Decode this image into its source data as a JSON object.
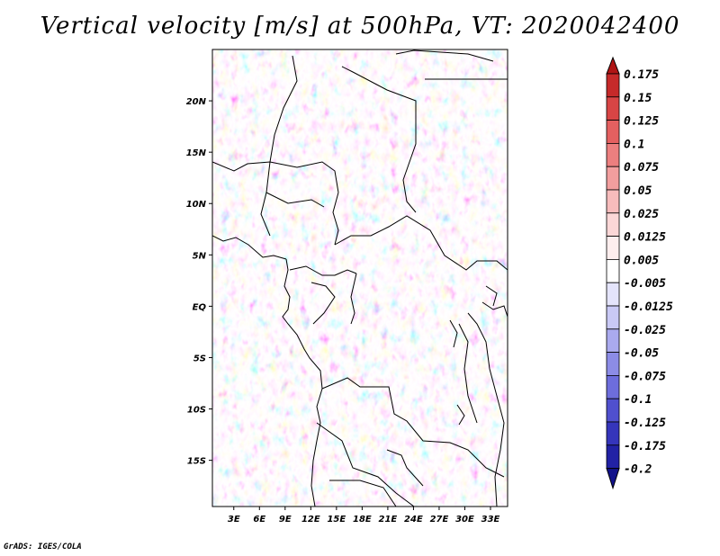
{
  "chart_data": {
    "type": "heatmap",
    "title": "Vertical velocity [m/s] at 500hPa, VT: 2020042400",
    "variable": "Vertical velocity",
    "units": "m/s",
    "level": "500hPa",
    "valid_time": "2020042400",
    "x_ticks": [
      {
        "value": 3,
        "label": "3E"
      },
      {
        "value": 6,
        "label": "6E"
      },
      {
        "value": 9,
        "label": "9E"
      },
      {
        "value": 12,
        "label": "12E"
      },
      {
        "value": 15,
        "label": "15E"
      },
      {
        "value": 18,
        "label": "18E"
      },
      {
        "value": 21,
        "label": "21E"
      },
      {
        "value": 24,
        "label": "24E"
      },
      {
        "value": 27,
        "label": "27E"
      },
      {
        "value": 30,
        "label": "30E"
      },
      {
        "value": 33,
        "label": "33E"
      }
    ],
    "y_ticks": [
      {
        "value": 20,
        "label": "20N"
      },
      {
        "value": 15,
        "label": "15N"
      },
      {
        "value": 10,
        "label": "10N"
      },
      {
        "value": 5,
        "label": "5N"
      },
      {
        "value": 0,
        "label": "EQ"
      },
      {
        "value": -5,
        "label": "5S"
      },
      {
        "value": -10,
        "label": "10S"
      },
      {
        "value": -15,
        "label": "15S"
      }
    ],
    "xlim": [
      0.5,
      35
    ],
    "ylim": [
      -19.5,
      25
    ],
    "colorbar": {
      "levels": [
        "0.175",
        "0.15",
        "0.125",
        "0.1",
        "0.075",
        "0.05",
        "0.025",
        "0.0125",
        "0.005",
        "-0.005",
        "-0.0125",
        "-0.025",
        "-0.05",
        "-0.075",
        "-0.1",
        "-0.125",
        "-0.175",
        "-0.2"
      ],
      "colors": [
        "#b01515",
        "#c62a2a",
        "#d84545",
        "#e46060",
        "#ec7f7f",
        "#f29e9e",
        "#f7bcbc",
        "#fbd7d7",
        "#fdeeee",
        "#ffffff",
        "#e4e4fb",
        "#c9c9f5",
        "#aaaaee",
        "#8c8ce6",
        "#6d6ddc",
        "#5050ce",
        "#3535bb",
        "#2222a5",
        "#12128a"
      ],
      "extend": "both"
    }
  },
  "footer": "GrADS: IGES/COLA"
}
